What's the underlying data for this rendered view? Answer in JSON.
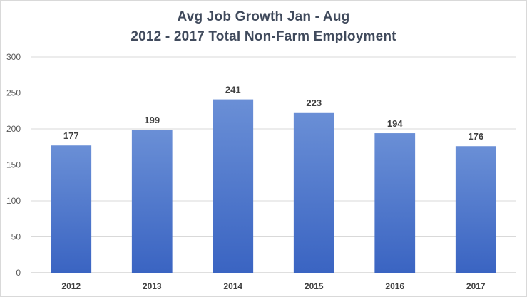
{
  "chart_data": {
    "type": "bar",
    "title": "Avg Job Growth Jan - Aug",
    "subtitle": "2012 - 2017 Total Non-Farm Employment",
    "categories": [
      "2012",
      "2013",
      "2014",
      "2015",
      "2016",
      "2017"
    ],
    "values": [
      177,
      199,
      241,
      223,
      194,
      176
    ],
    "data_labels": [
      "177",
      "199",
      "241",
      "223",
      "194",
      "176"
    ],
    "yticks": [
      "0",
      "50",
      "100",
      "150",
      "200",
      "250",
      "300"
    ],
    "ylim": [
      0,
      300
    ],
    "grid": true,
    "legend": "none",
    "bar_color_top": "#6a8fd6",
    "bar_color_bottom": "#3a64c2"
  }
}
